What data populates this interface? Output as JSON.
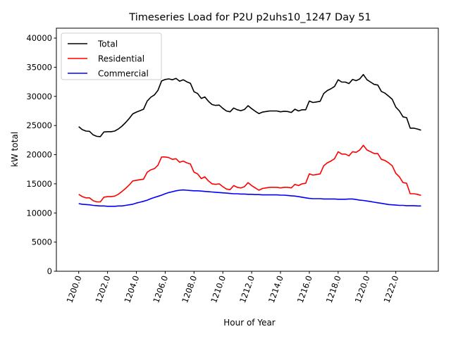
{
  "chart_data": {
    "type": "line",
    "title": "Timeseries Load for P2U p2uhs10_1247  Day 51",
    "xlabel": "Hour of Year",
    "ylabel": "kW total",
    "xlim": [
      1198.45,
      1224.95
    ],
    "ylim": [
      0,
      41700
    ],
    "xticks": [
      1200,
      1202,
      1204,
      1206,
      1208,
      1210,
      1212,
      1214,
      1216,
      1218,
      1220,
      1222
    ],
    "xtick_labels": [
      "1200.0",
      "1202.0",
      "1204.0",
      "1206.0",
      "1208.0",
      "1210.0",
      "1212.0",
      "1214.0",
      "1216.0",
      "1218.0",
      "1220.0",
      "1222.0"
    ],
    "yticks": [
      0,
      5000,
      10000,
      15000,
      20000,
      25000,
      30000,
      35000,
      40000
    ],
    "ytick_labels": [
      "0",
      "5000",
      "10000",
      "15000",
      "20000",
      "25000",
      "30000",
      "35000",
      "40000"
    ],
    "grid": false,
    "legend_position": "top-left",
    "x_start": 1200,
    "x_step": 0.25,
    "series": [
      {
        "name": "Total",
        "color": "#000000",
        "values": [
          24800,
          24300,
          24050,
          24000,
          23400,
          23150,
          23100,
          23900,
          23950,
          23950,
          24050,
          24400,
          24900,
          25500,
          26200,
          27000,
          27300,
          27550,
          27800,
          29200,
          29850,
          30250,
          31050,
          32650,
          32900,
          33000,
          32850,
          33100,
          32600,
          32850,
          32500,
          32250,
          30800,
          30500,
          29650,
          29900,
          29150,
          28600,
          28450,
          28500,
          27950,
          27500,
          27350,
          28000,
          27700,
          27550,
          27750,
          28400,
          27900,
          27450,
          27050,
          27300,
          27400,
          27500,
          27500,
          27500,
          27350,
          27450,
          27400,
          27250,
          27800,
          27500,
          27700,
          27700,
          29200,
          28950,
          29050,
          29150,
          30500,
          31000,
          31300,
          31700,
          32850,
          32450,
          32450,
          32200,
          32900,
          32700,
          33000,
          33750,
          32850,
          32450,
          32050,
          31950,
          30850,
          30550,
          30050,
          29500,
          28150,
          27500,
          26500,
          26350,
          24550,
          24550,
          24400,
          24200
        ]
      },
      {
        "name": "Residential",
        "color": "#ff0000",
        "values": [
          13200,
          12800,
          12600,
          12600,
          12100,
          11900,
          11900,
          12700,
          12800,
          12800,
          12900,
          13200,
          13700,
          14200,
          14800,
          15500,
          15600,
          15700,
          15800,
          17000,
          17400,
          17600,
          18200,
          19600,
          19600,
          19500,
          19200,
          19300,
          18700,
          18900,
          18600,
          18400,
          17000,
          16700,
          15900,
          16200,
          15500,
          15000,
          14900,
          15000,
          14500,
          14100,
          14000,
          14700,
          14400,
          14300,
          14500,
          15200,
          14700,
          14300,
          13900,
          14200,
          14300,
          14400,
          14400,
          14400,
          14300,
          14400,
          14400,
          14300,
          14900,
          14700,
          15000,
          15100,
          16700,
          16500,
          16600,
          16700,
          18100,
          18600,
          18900,
          19300,
          20500,
          20100,
          20100,
          19800,
          20500,
          20400,
          20800,
          21600,
          20800,
          20500,
          20200,
          20200,
          19200,
          19000,
          18600,
          18100,
          16800,
          16200,
          15200,
          15100,
          13300,
          13300,
          13200,
          13000
        ]
      },
      {
        "name": "Commercial",
        "color": "#0000ff",
        "values": [
          11600,
          11500,
          11450,
          11400,
          11300,
          11250,
          11200,
          11200,
          11150,
          11150,
          11150,
          11200,
          11200,
          11300,
          11400,
          11500,
          11700,
          11850,
          12000,
          12200,
          12450,
          12650,
          12850,
          13050,
          13300,
          13500,
          13650,
          13800,
          13900,
          13950,
          13900,
          13850,
          13800,
          13800,
          13750,
          13700,
          13650,
          13600,
          13550,
          13500,
          13450,
          13400,
          13350,
          13300,
          13300,
          13250,
          13250,
          13200,
          13200,
          13150,
          13150,
          13100,
          13100,
          13100,
          13100,
          13100,
          13050,
          13050,
          13000,
          12950,
          12900,
          12800,
          12700,
          12600,
          12500,
          12450,
          12450,
          12450,
          12400,
          12400,
          12400,
          12400,
          12350,
          12350,
          12350,
          12400,
          12400,
          12300,
          12200,
          12150,
          12050,
          11950,
          11850,
          11750,
          11650,
          11550,
          11450,
          11400,
          11350,
          11300,
          11300,
          11250,
          11250,
          11250,
          11200,
          11200
        ]
      }
    ]
  }
}
